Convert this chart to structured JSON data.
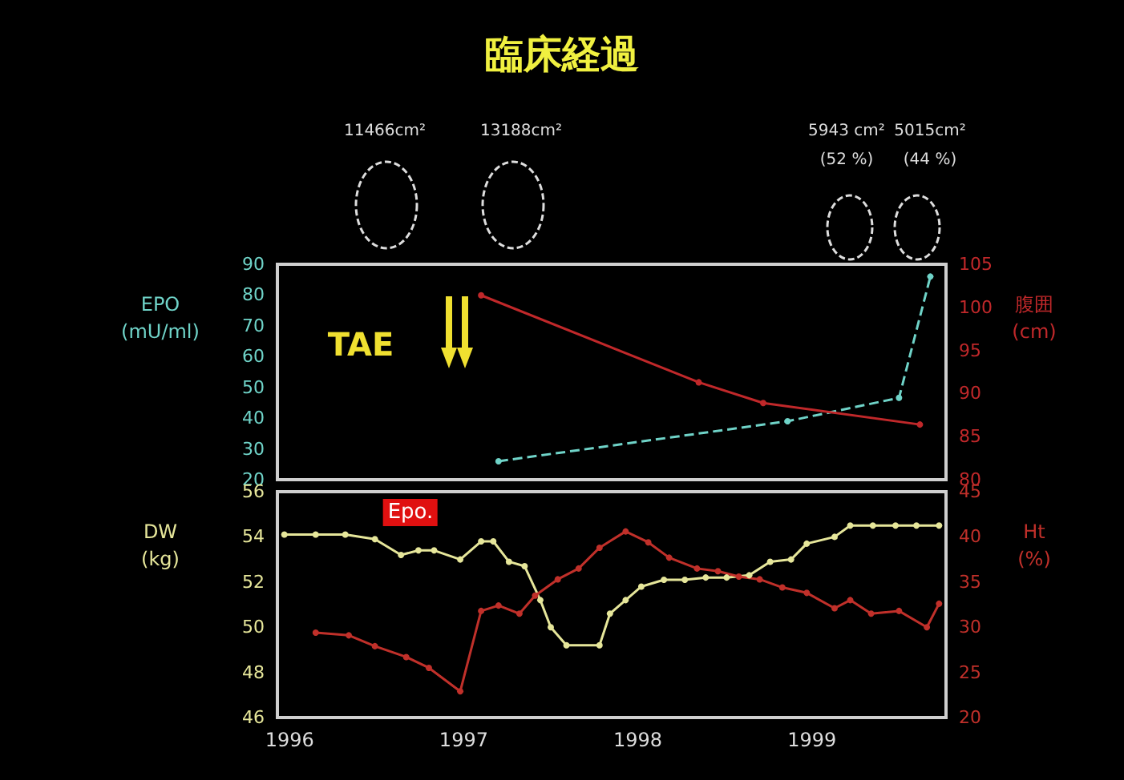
{
  "chart_data": [
    {
      "type": "line",
      "title": "臨床経過",
      "ylabel": "EPO\n(mU/ml)",
      "y2label": "腹囲\n(cm)",
      "xlim": [
        1995.93,
        1999.77
      ],
      "xticks": [
        1996,
        1997,
        1998,
        1999
      ],
      "ylim": [
        20,
        90
      ],
      "yticks": [
        20,
        30,
        40,
        50,
        60,
        70,
        80,
        90
      ],
      "y2lim": [
        80,
        105
      ],
      "y2ticks": [
        80,
        85,
        90,
        95,
        100,
        105
      ],
      "tick_labels": "y",
      "marker": "circle",
      "series": [
        {
          "color": "#6fd3c8",
          "line_style": "dashed",
          "x": [
            1997.2,
            1998.86,
            1999.5,
            1999.68
          ],
          "values": [
            26,
            39,
            46.6,
            86
          ]
        },
        {
          "color": "#c0282a",
          "axis": "y2",
          "line_style": "solid",
          "x": [
            1997.1,
            1998.35,
            1998.72,
            1999.62
          ],
          "values": [
            101.4,
            91.3,
            88.9,
            86.4
          ]
        }
      ],
      "annotations": [
        "11466cm²",
        "13188cm²",
        "5943 cm²",
        "(52 %)",
        "5015cm²",
        "(44 %)",
        "TAE"
      ]
    },
    {
      "type": "line",
      "ylabel": "DW\n(kg)",
      "y2label": "Ht\n(%)",
      "xlim": [
        1995.93,
        1999.77
      ],
      "xticks": [
        1996,
        1997,
        1998,
        1999
      ],
      "ylim": [
        46,
        56
      ],
      "yticks": [
        46,
        48,
        50,
        52,
        54,
        56
      ],
      "y2lim": [
        20,
        45
      ],
      "y2ticks": [
        20,
        25,
        30,
        35,
        40,
        45
      ],
      "marker": "circle",
      "line_style": "solid",
      "series": [
        {
          "color": "#e6e69a",
          "x": [
            1995.97,
            1996.15,
            1996.32,
            1996.49,
            1996.64,
            1996.74,
            1996.83,
            1996.98,
            1997.1,
            1997.17,
            1997.26,
            1997.35,
            1997.44,
            1997.5,
            1997.59,
            1997.78,
            1997.84,
            1997.93,
            1998.02,
            1998.15,
            1998.27,
            1998.39,
            1998.51,
            1998.64,
            1998.76,
            1998.88,
            1998.97,
            1999.13,
            1999.22,
            1999.35,
            1999.48,
            1999.6,
            1999.73
          ],
          "values": [
            54.1,
            54.1,
            54.1,
            53.9,
            53.2,
            53.4,
            53.4,
            53.0,
            53.8,
            53.8,
            52.9,
            52.7,
            51.2,
            50.0,
            49.2,
            49.2,
            50.6,
            51.2,
            51.8,
            52.1,
            52.1,
            52.2,
            52.2,
            52.3,
            52.9,
            53.0,
            53.7,
            54.0,
            54.5,
            54.5,
            54.5,
            54.5,
            54.5
          ]
        },
        {
          "color": "#c0302a",
          "axis": "y2",
          "x": [
            1996.15,
            1996.34,
            1996.49,
            1996.67,
            1996.8,
            1996.98,
            1997.1,
            1997.2,
            1997.32,
            1997.41,
            1997.54,
            1997.66,
            1997.78,
            1997.93,
            1998.06,
            1998.18,
            1998.34,
            1998.46,
            1998.58,
            1998.7,
            1998.83,
            1998.97,
            1999.13,
            1999.22,
            1999.34,
            1999.5,
            1999.66,
            1999.73
          ],
          "values": [
            29.4,
            29.1,
            27.9,
            26.7,
            25.5,
            22.9,
            31.8,
            32.4,
            31.5,
            33.5,
            35.3,
            36.5,
            38.8,
            40.6,
            39.4,
            37.7,
            36.5,
            36.2,
            35.6,
            35.3,
            34.4,
            33.8,
            32.1,
            33.0,
            31.5,
            31.8,
            30.0,
            32.6
          ]
        }
      ],
      "annotations": [
        "Epo."
      ]
    }
  ]
}
